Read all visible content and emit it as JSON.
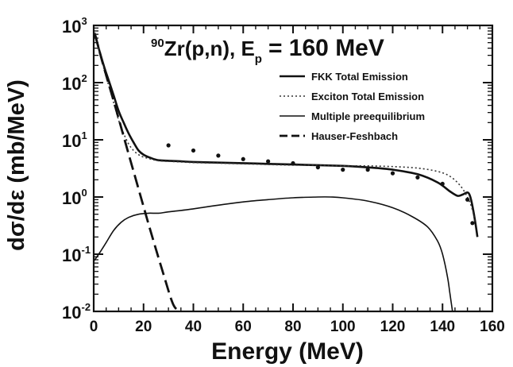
{
  "chart_data": {
    "type": "line",
    "title_main": "Zr(p,n), E",
    "title_sup": "90",
    "title_sub": "p",
    "title_value": "= 160 MeV",
    "xlabel": "Energy (MeV)",
    "ylabel": "dσ/dε (mb/MeV)",
    "xlim": [
      0,
      160
    ],
    "ylim": [
      0.01,
      1000
    ],
    "yscale": "log",
    "grid": false,
    "legend_position": "top-right",
    "x_ticks": [
      {
        "value": 0,
        "label": "0"
      },
      {
        "value": 20,
        "label": "20"
      },
      {
        "value": 40,
        "label": "40"
      },
      {
        "value": 60,
        "label": "60"
      },
      {
        "value": 80,
        "label": "80"
      },
      {
        "value": 100,
        "label": "100"
      },
      {
        "value": 120,
        "label": "120"
      },
      {
        "value": 140,
        "label": "140"
      },
      {
        "value": 160,
        "label": "160"
      }
    ],
    "y_ticks": [
      {
        "value": 1000,
        "base": "10",
        "exp": "3"
      },
      {
        "value": 100,
        "base": "10",
        "exp": "2"
      },
      {
        "value": 10,
        "base": "10",
        "exp": "1"
      },
      {
        "value": 1,
        "base": "10",
        "exp": "0"
      },
      {
        "value": 0.1,
        "base": "10",
        "exp": "-1"
      },
      {
        "value": 0.01,
        "base": "10",
        "exp": "-2"
      }
    ],
    "series": [
      {
        "name": "FKK Total Emission",
        "style": "solid",
        "x": [
          0.5,
          2,
          4,
          6,
          8,
          10,
          12,
          14,
          16,
          18,
          20,
          23,
          26,
          30,
          35,
          40,
          50,
          60,
          70,
          80,
          90,
          100,
          110,
          120,
          130,
          138,
          143,
          146,
          148,
          150,
          151,
          152,
          153,
          154
        ],
        "y": [
          700,
          400,
          200,
          110,
          60,
          32,
          20,
          13,
          9,
          6.5,
          5.5,
          4.8,
          4.4,
          4.3,
          4.2,
          4.1,
          4.0,
          3.9,
          3.8,
          3.7,
          3.6,
          3.5,
          3.3,
          3.0,
          2.5,
          1.8,
          1.25,
          1.05,
          1.1,
          1.2,
          1.05,
          0.7,
          0.4,
          0.2
        ]
      },
      {
        "name": "Exciton Total Emission",
        "style": "dotted",
        "x": [
          0.5,
          2,
          4,
          6,
          8,
          10,
          12,
          14,
          16,
          18,
          20,
          23,
          26,
          30,
          35,
          40,
          50,
          60,
          70,
          80,
          90,
          100,
          110,
          120,
          130,
          138,
          143,
          147,
          150,
          152,
          153
        ],
        "y": [
          750,
          420,
          180,
          90,
          45,
          22,
          13,
          8.5,
          6.5,
          5.5,
          5.0,
          4.6,
          4.3,
          4.2,
          4.1,
          4.0,
          3.9,
          3.8,
          3.7,
          3.6,
          3.6,
          3.5,
          3.5,
          3.4,
          3.2,
          2.8,
          2.3,
          1.6,
          1.0,
          0.6,
          0.35
        ]
      },
      {
        "name": "Multiple preequilibrium",
        "style": "thin-solid",
        "x": [
          0,
          2,
          5,
          8,
          11,
          14,
          18,
          22,
          26,
          30,
          40,
          50,
          60,
          70,
          80,
          90,
          95,
          100,
          110,
          120,
          128,
          134,
          138,
          140,
          142,
          143,
          144
        ],
        "y": [
          0.075,
          0.1,
          0.16,
          0.26,
          0.36,
          0.44,
          0.5,
          0.52,
          0.52,
          0.55,
          0.62,
          0.72,
          0.82,
          0.9,
          0.97,
          1.0,
          1.0,
          0.97,
          0.85,
          0.65,
          0.45,
          0.3,
          0.17,
          0.1,
          0.04,
          0.02,
          0.01
        ]
      },
      {
        "name": "Hauser-Feshbach",
        "style": "dashed",
        "x": [
          0.5,
          4,
          8,
          12,
          16,
          20,
          24,
          28,
          32,
          35
        ],
        "y": [
          700,
          190,
          48,
          11.5,
          2.8,
          0.68,
          0.17,
          0.045,
          0.013,
          0.0055
        ]
      },
      {
        "name": "",
        "style": "points",
        "x": [
          30,
          40,
          50,
          60,
          70,
          80,
          90,
          100,
          110,
          120,
          130,
          140,
          150,
          152
        ],
        "y": [
          8,
          6.5,
          5.3,
          4.6,
          4.2,
          3.9,
          3.3,
          3.0,
          3.0,
          2.6,
          2.2,
          1.7,
          0.9,
          0.35
        ]
      }
    ]
  }
}
